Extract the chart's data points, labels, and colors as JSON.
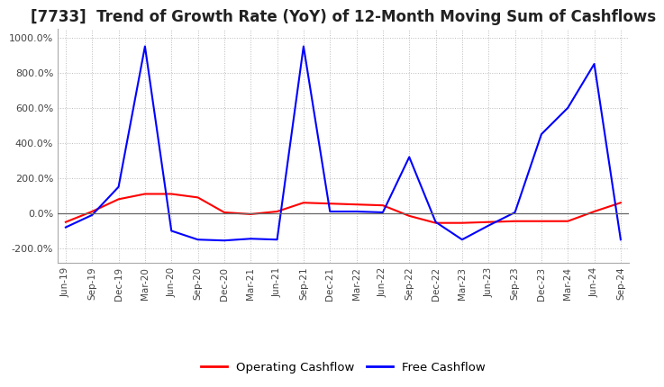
{
  "title": "[7733]  Trend of Growth Rate (YoY) of 12-Month Moving Sum of Cashflows",
  "title_fontsize": 12,
  "ylim": [
    -280,
    1050
  ],
  "yticks": [
    -200,
    0,
    200,
    400,
    600,
    800,
    1000
  ],
  "legend_labels": [
    "Operating Cashflow",
    "Free Cashflow"
  ],
  "legend_colors": [
    "#ff0000",
    "#0000ff"
  ],
  "background_color": "#ffffff",
  "grid_color": "#bbbbbb",
  "x_labels": [
    "Jun-19",
    "Sep-19",
    "Dec-19",
    "Mar-20",
    "Jun-20",
    "Sep-20",
    "Dec-20",
    "Mar-21",
    "Jun-21",
    "Sep-21",
    "Dec-21",
    "Mar-22",
    "Jun-22",
    "Sep-22",
    "Dec-22",
    "Mar-23",
    "Jun-23",
    "Sep-23",
    "Dec-23",
    "Mar-24",
    "Jun-24",
    "Sep-24"
  ],
  "operating_cashflow": [
    -50,
    10,
    80,
    110,
    110,
    90,
    5,
    -5,
    10,
    60,
    55,
    50,
    45,
    -15,
    -55,
    -55,
    -50,
    -45,
    -45,
    -45,
    10,
    60
  ],
  "free_cashflow": [
    -80,
    -10,
    150,
    950,
    -100,
    -150,
    -155,
    -145,
    -150,
    950,
    10,
    10,
    5,
    320,
    -50,
    -150,
    -70,
    5,
    450,
    600,
    850,
    -150
  ]
}
